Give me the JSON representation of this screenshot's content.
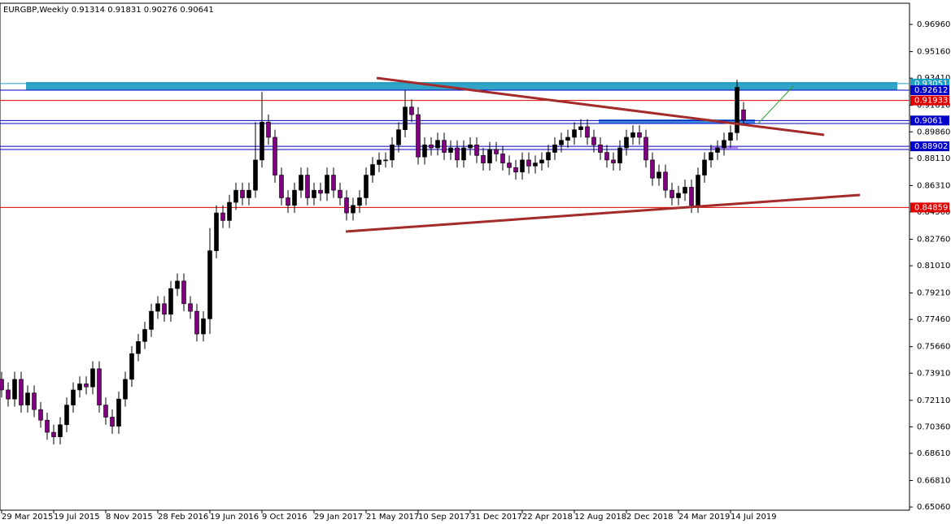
{
  "chart_data": {
    "type": "candlestick",
    "symbol": "EURGBP,Weekly",
    "x": [
      "29 Mar 2015",
      "12 Apr 2015",
      "26 Apr 2015",
      "10 May 2015",
      "24 May 2015",
      "7 Jun 2015",
      "21 Jun 2015",
      "5 Jul 2015",
      "19 Jul 2015",
      "2 Aug 2015",
      "16 Aug 2015",
      "30 Aug 2015",
      "13 Sep 2015",
      "27 Sep 2015",
      "11 Oct 2015",
      "25 Oct 2015",
      "8 Nov 2015",
      "22 Nov 2015",
      "6 Dec 2015",
      "20 Dec 2015",
      "3 Jan 2016",
      "17 Jan 2016",
      "31 Jan 2016",
      "14 Feb 2016",
      "28 Feb 2016",
      "13 Mar 2016",
      "27 Mar 2016",
      "10 Apr 2016",
      "24 Apr 2016",
      "8 May 2016",
      "22 May 2016",
      "5 Jun 2016",
      "19 Jun 2016",
      "3 Jul 2016",
      "17 Jul 2016",
      "31 Jul 2016",
      "14 Aug 2016",
      "28 Aug 2016",
      "11 Sep 2016",
      "25 Sep 2016",
      "9 Oct 2016",
      "23 Oct 2016",
      "6 Nov 2016",
      "20 Nov 2016",
      "4 Dec 2016",
      "18 Dec 2016",
      "1 Jan 2017",
      "15 Jan 2017",
      "29 Jan 2017",
      "12 Feb 2017",
      "26 Feb 2017",
      "12 Mar 2017",
      "26 Mar 2017",
      "9 Apr 2017",
      "23 Apr 2017",
      "7 May 2017",
      "21 May 2017",
      "4 Jun 2017",
      "18 Jun 2017",
      "2 Jul 2017",
      "16 Jul 2017",
      "30 Jul 2017",
      "13 Aug 2017",
      "27 Aug 2017",
      "10 Sep 2017",
      "24 Sep 2017",
      "8 Oct 2017",
      "22 Oct 2017",
      "5 Nov 2017",
      "19 Nov 2017",
      "3 Dec 2017",
      "17 Dec 2017",
      "31 Dec 2017",
      "14 Jan 2018",
      "28 Jan 2018",
      "11 Feb 2018",
      "25 Feb 2018",
      "11 Mar 2018",
      "25 Mar 2018",
      "8 Apr 2018",
      "22 Apr 2018",
      "6 May 2018",
      "20 May 2018",
      "3 Jun 2018",
      "17 Jun 2018",
      "1 Jul 2018",
      "15 Jul 2018",
      "29 Jul 2018",
      "12 Aug 2018",
      "26 Aug 2018",
      "9 Sep 2018",
      "23 Sep 2018",
      "7 Oct 2018",
      "21 Oct 2018",
      "4 Nov 2018",
      "18 Nov 2018",
      "2 Dec 2018",
      "16 Dec 2018",
      "30 Dec 2018",
      "13 Jan 2019",
      "27 Jan 2019",
      "10 Feb 2019",
      "24 Feb 2019",
      "10 Mar 2019",
      "24 Mar 2019",
      "7 Apr 2019",
      "21 Apr 2019",
      "5 May 2019",
      "19 May 2019",
      "2 Jun 2019",
      "16 Jun 2019",
      "30 Jun 2019",
      "14 Jul 2019",
      "28 Jul 2019",
      "11 Aug 2019"
    ],
    "open": [
      0.735,
      0.728,
      0.722,
      0.735,
      0.718,
      0.726,
      0.715,
      0.708,
      0.7,
      0.697,
      0.705,
      0.718,
      0.728,
      0.732,
      0.73,
      0.742,
      0.718,
      0.71,
      0.704,
      0.722,
      0.735,
      0.752,
      0.76,
      0.768,
      0.78,
      0.785,
      0.778,
      0.795,
      0.8,
      0.785,
      0.78,
      0.765,
      0.775,
      0.82,
      0.845,
      0.84,
      0.852,
      0.86,
      0.855,
      0.86,
      0.88,
      0.905,
      0.895,
      0.87,
      0.855,
      0.85,
      0.86,
      0.87,
      0.855,
      0.86,
      0.858,
      0.87,
      0.86,
      0.855,
      0.845,
      0.85,
      0.855,
      0.87,
      0.877,
      0.88,
      0.88,
      0.89,
      0.9,
      0.915,
      0.91,
      0.882,
      0.89,
      0.888,
      0.893,
      0.885,
      0.888,
      0.88,
      0.888,
      0.89,
      0.883,
      0.878,
      0.887,
      0.884,
      0.878,
      0.875,
      0.872,
      0.88,
      0.876,
      0.878,
      0.88,
      0.885,
      0.89,
      0.893,
      0.895,
      0.9,
      0.902,
      0.895,
      0.89,
      0.885,
      0.88,
      0.878,
      0.888,
      0.895,
      0.898,
      0.895,
      0.88,
      0.868,
      0.872,
      0.86,
      0.855,
      0.858,
      0.862,
      0.85,
      0.87,
      0.88,
      0.885,
      0.888,
      0.893,
      0.898,
      0.91314
    ],
    "high": [
      0.74,
      0.733,
      0.74,
      0.74,
      0.731,
      0.731,
      0.72,
      0.713,
      0.705,
      0.71,
      0.723,
      0.733,
      0.737,
      0.737,
      0.747,
      0.747,
      0.723,
      0.715,
      0.727,
      0.74,
      0.757,
      0.765,
      0.773,
      0.785,
      0.79,
      0.79,
      0.8,
      0.805,
      0.805,
      0.79,
      0.785,
      0.78,
      0.835,
      0.85,
      0.85,
      0.857,
      0.865,
      0.865,
      0.865,
      0.905,
      0.925,
      0.91,
      0.9,
      0.875,
      0.86,
      0.865,
      0.875,
      0.875,
      0.865,
      0.865,
      0.875,
      0.875,
      0.865,
      0.86,
      0.855,
      0.86,
      0.875,
      0.882,
      0.885,
      0.885,
      0.895,
      0.905,
      0.926,
      0.92,
      0.915,
      0.895,
      0.895,
      0.898,
      0.898,
      0.893,
      0.893,
      0.893,
      0.895,
      0.895,
      0.888,
      0.892,
      0.892,
      0.889,
      0.883,
      0.88,
      0.885,
      0.885,
      0.883,
      0.885,
      0.89,
      0.895,
      0.898,
      0.9,
      0.905,
      0.907,
      0.907,
      0.9,
      0.895,
      0.89,
      0.885,
      0.893,
      0.9,
      0.903,
      0.903,
      0.9,
      0.885,
      0.877,
      0.877,
      0.865,
      0.863,
      0.867,
      0.867,
      0.875,
      0.885,
      0.89,
      0.893,
      0.898,
      0.903,
      0.933,
      0.91831
    ],
    "low": [
      0.723,
      0.717,
      0.717,
      0.713,
      0.713,
      0.71,
      0.703,
      0.695,
      0.692,
      0.692,
      0.7,
      0.713,
      0.723,
      0.725,
      0.725,
      0.713,
      0.705,
      0.699,
      0.699,
      0.717,
      0.73,
      0.747,
      0.755,
      0.763,
      0.775,
      0.773,
      0.773,
      0.79,
      0.78,
      0.775,
      0.76,
      0.76,
      0.765,
      0.815,
      0.835,
      0.835,
      0.847,
      0.85,
      0.85,
      0.855,
      0.875,
      0.89,
      0.865,
      0.85,
      0.845,
      0.845,
      0.855,
      0.85,
      0.85,
      0.853,
      0.853,
      0.855,
      0.85,
      0.84,
      0.84,
      0.845,
      0.85,
      0.865,
      0.872,
      0.875,
      0.875,
      0.885,
      0.895,
      0.905,
      0.877,
      0.877,
      0.883,
      0.883,
      0.88,
      0.88,
      0.875,
      0.875,
      0.883,
      0.878,
      0.873,
      0.873,
      0.879,
      0.873,
      0.87,
      0.867,
      0.867,
      0.871,
      0.871,
      0.873,
      0.875,
      0.88,
      0.885,
      0.888,
      0.89,
      0.895,
      0.89,
      0.885,
      0.88,
      0.875,
      0.873,
      0.873,
      0.883,
      0.89,
      0.89,
      0.875,
      0.863,
      0.863,
      0.855,
      0.85,
      0.85,
      0.853,
      0.845,
      0.845,
      0.865,
      0.875,
      0.88,
      0.883,
      0.888,
      0.893,
      0.90276
    ],
    "close": [
      0.728,
      0.722,
      0.735,
      0.718,
      0.726,
      0.715,
      0.708,
      0.7,
      0.697,
      0.705,
      0.718,
      0.728,
      0.732,
      0.73,
      0.742,
      0.718,
      0.71,
      0.704,
      0.722,
      0.735,
      0.752,
      0.76,
      0.768,
      0.78,
      0.785,
      0.778,
      0.795,
      0.8,
      0.785,
      0.78,
      0.765,
      0.775,
      0.82,
      0.845,
      0.84,
      0.852,
      0.86,
      0.855,
      0.86,
      0.88,
      0.905,
      0.895,
      0.87,
      0.855,
      0.85,
      0.86,
      0.87,
      0.855,
      0.86,
      0.858,
      0.87,
      0.86,
      0.855,
      0.845,
      0.85,
      0.855,
      0.87,
      0.877,
      0.88,
      0.88,
      0.89,
      0.9,
      0.915,
      0.91,
      0.882,
      0.89,
      0.888,
      0.893,
      0.885,
      0.888,
      0.88,
      0.888,
      0.89,
      0.883,
      0.878,
      0.887,
      0.884,
      0.878,
      0.875,
      0.872,
      0.88,
      0.876,
      0.878,
      0.88,
      0.885,
      0.89,
      0.893,
      0.895,
      0.9,
      0.902,
      0.895,
      0.89,
      0.885,
      0.88,
      0.878,
      0.888,
      0.895,
      0.898,
      0.895,
      0.88,
      0.868,
      0.872,
      0.86,
      0.855,
      0.858,
      0.862,
      0.85,
      0.87,
      0.88,
      0.885,
      0.888,
      0.893,
      0.898,
      0.928,
      0.90641
    ],
    "up_color": "#000000",
    "down_color": "#800080",
    "ylim": [
      0.6485,
      0.9836
    ],
    "yticks": [
      {
        "value": 0.9696,
        "label": "0.96960"
      },
      {
        "value": 0.9516,
        "label": "0.95160"
      },
      {
        "value": 0.9341,
        "label": "0.93410"
      },
      {
        "value": 0.9161,
        "label": "0.91610"
      },
      {
        "value": 0.8986,
        "label": "0.89860"
      },
      {
        "value": 0.8811,
        "label": "0.88110"
      },
      {
        "value": 0.8631,
        "label": "0.86310"
      },
      {
        "value": 0.8456,
        "label": "0.84560"
      },
      {
        "value": 0.8276,
        "label": "0.82760"
      },
      {
        "value": 0.8101,
        "label": "0.81010"
      },
      {
        "value": 0.7921,
        "label": "0.79210"
      },
      {
        "value": 0.7746,
        "label": "0.77460"
      },
      {
        "value": 0.7566,
        "label": "0.75660"
      },
      {
        "value": 0.7391,
        "label": "0.73910"
      },
      {
        "value": 0.7211,
        "label": "0.72110"
      },
      {
        "value": 0.7036,
        "label": "0.70360"
      },
      {
        "value": 0.6861,
        "label": "0.68610"
      },
      {
        "value": 0.6681,
        "label": "0.66810"
      },
      {
        "value": 0.6506,
        "label": "0.65060"
      }
    ],
    "xticks": [
      "29 Mar 2015",
      "19 Jul 2015",
      "8 Nov 2015",
      "28 Feb 2016",
      "19 Jun 2016",
      "9 Oct 2016",
      "29 Jan 2017",
      "21 May 2017",
      "10 Sep 2017",
      "31 Dec 2017",
      "22 Apr 2018",
      "12 Aug 2018",
      "2 Dec 2018",
      "24 Mar 2019",
      "14 Jul 2019"
    ],
    "levels": [
      {
        "value": 0.93051,
        "color": "#1e9fc4"
      },
      {
        "value": 0.92612,
        "color": "#0000c8"
      },
      {
        "value": 0.91933,
        "color": "#e00000"
      },
      {
        "value": 0.9061,
        "color": "#0000c8"
      },
      {
        "value": 0.88902,
        "color": "#0000c8"
      },
      {
        "value": 0.84859,
        "color": "#e00000"
      }
    ]
  }
}
